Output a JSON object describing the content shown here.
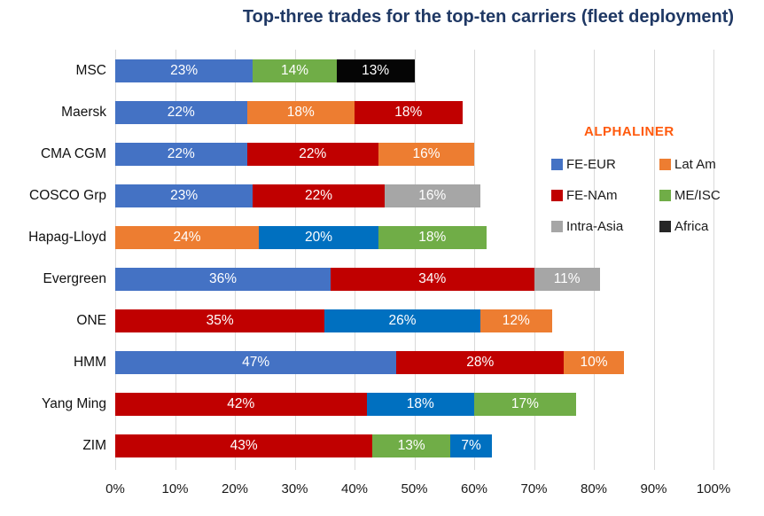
{
  "chart": {
    "title": "Top-three trades for the top-ten carriers (fleet deployment)",
    "legend_title": "ALPHALINER",
    "title_color": "#1F3864",
    "legend_title_color": "#FF5A0D",
    "gridline_color": "#D9D9D9"
  },
  "chart_data": {
    "type": "bar",
    "orientation": "horizontal-stacked",
    "title": "Top-three trades for the top-ten carriers (fleet deployment)",
    "xlabel": "",
    "ylabel": "",
    "xlim": [
      0,
      100
    ],
    "x_ticks": [
      "0%",
      "10%",
      "20%",
      "30%",
      "40%",
      "50%",
      "60%",
      "70%",
      "80%",
      "90%",
      "100%"
    ],
    "grid": "vertical",
    "legend": {
      "title": "ALPHALINER",
      "position": "right-overlay",
      "entries": [
        {
          "label": "FE-EUR",
          "color": "#4472C4"
        },
        {
          "label": "Lat Am",
          "color": "#ED7D31"
        },
        {
          "label": "FE-NAm",
          "color": "#C00000"
        },
        {
          "label": "ME/ISC",
          "color": "#70AD47"
        },
        {
          "label": "Intra-Asia",
          "color": "#A6A6A6"
        },
        {
          "label": "Africa",
          "color": "#262626"
        }
      ]
    },
    "categories": [
      "MSC",
      "Maersk",
      "CMA CGM",
      "COSCO Grp",
      "Hapag-Lloyd",
      "Evergreen",
      "ONE",
      "HMM",
      "Yang Ming",
      "ZIM"
    ],
    "rows": [
      {
        "carrier": "MSC",
        "segments": [
          {
            "trade": "FE-EUR",
            "value": 23,
            "label": "23%",
            "color": "#4472C4"
          },
          {
            "trade": "ME/ISC",
            "value": 14,
            "label": "14%",
            "color": "#70AD47"
          },
          {
            "trade": "Africa",
            "value": 13,
            "label": "13%",
            "color": "#050505"
          }
        ]
      },
      {
        "carrier": "Maersk",
        "segments": [
          {
            "trade": "FE-EUR",
            "value": 22,
            "label": "22%",
            "color": "#4472C4"
          },
          {
            "trade": "Lat Am",
            "value": 18,
            "label": "18%",
            "color": "#ED7D31"
          },
          {
            "trade": "FE-NAm",
            "value": 18,
            "label": "18%",
            "color": "#C00000"
          }
        ]
      },
      {
        "carrier": "CMA CGM",
        "segments": [
          {
            "trade": "FE-EUR",
            "value": 22,
            "label": "22%",
            "color": "#4472C4"
          },
          {
            "trade": "FE-NAm",
            "value": 22,
            "label": "22%",
            "color": "#C00000"
          },
          {
            "trade": "Lat Am",
            "value": 16,
            "label": "16%",
            "color": "#ED7D31"
          }
        ]
      },
      {
        "carrier": "COSCO Grp",
        "segments": [
          {
            "trade": "FE-EUR",
            "value": 23,
            "label": "23%",
            "color": "#4472C4"
          },
          {
            "trade": "FE-NAm",
            "value": 22,
            "label": "22%",
            "color": "#C00000"
          },
          {
            "trade": "Intra-Asia",
            "value": 16,
            "label": "16%",
            "color": "#A6A6A6"
          }
        ]
      },
      {
        "carrier": "Hapag-Lloyd",
        "segments": [
          {
            "trade": "Lat Am",
            "value": 24,
            "label": "24%",
            "color": "#ED7D31"
          },
          {
            "trade": "FE-EUR",
            "value": 20,
            "label": "20%",
            "color": "#0070C0"
          },
          {
            "trade": "ME/ISC",
            "value": 18,
            "label": "18%",
            "color": "#70AD47"
          }
        ]
      },
      {
        "carrier": "Evergreen",
        "segments": [
          {
            "trade": "FE-EUR",
            "value": 36,
            "label": "36%",
            "color": "#4472C4"
          },
          {
            "trade": "FE-NAm",
            "value": 34,
            "label": "34%",
            "color": "#C00000"
          },
          {
            "trade": "Intra-Asia",
            "value": 11,
            "label": "11%",
            "color": "#A6A6A6"
          }
        ]
      },
      {
        "carrier": "ONE",
        "segments": [
          {
            "trade": "FE-NAm",
            "value": 35,
            "label": "35%",
            "color": "#C00000"
          },
          {
            "trade": "FE-EUR",
            "value": 26,
            "label": "26%",
            "color": "#0070C0"
          },
          {
            "trade": "Lat Am",
            "value": 12,
            "label": "12%",
            "color": "#ED7D31"
          }
        ]
      },
      {
        "carrier": "HMM",
        "segments": [
          {
            "trade": "FE-EUR",
            "value": 47,
            "label": "47%",
            "color": "#4472C4"
          },
          {
            "trade": "FE-NAm",
            "value": 28,
            "label": "28%",
            "color": "#C00000"
          },
          {
            "trade": "Lat Am",
            "value": 10,
            "label": "10%",
            "color": "#ED7D31"
          }
        ]
      },
      {
        "carrier": "Yang Ming",
        "segments": [
          {
            "trade": "FE-NAm",
            "value": 42,
            "label": "42%",
            "color": "#C00000"
          },
          {
            "trade": "FE-EUR",
            "value": 18,
            "label": "18%",
            "color": "#0070C0"
          },
          {
            "trade": "ME/ISC",
            "value": 17,
            "label": "17%",
            "color": "#70AD47"
          }
        ]
      },
      {
        "carrier": "ZIM",
        "segments": [
          {
            "trade": "FE-NAm",
            "value": 43,
            "label": "43%",
            "color": "#C00000"
          },
          {
            "trade": "ME/ISC",
            "value": 13,
            "label": "13%",
            "color": "#70AD47"
          },
          {
            "trade": "FE-EUR",
            "value": 7,
            "label": "7%",
            "color": "#0070C0"
          }
        ]
      }
    ]
  }
}
